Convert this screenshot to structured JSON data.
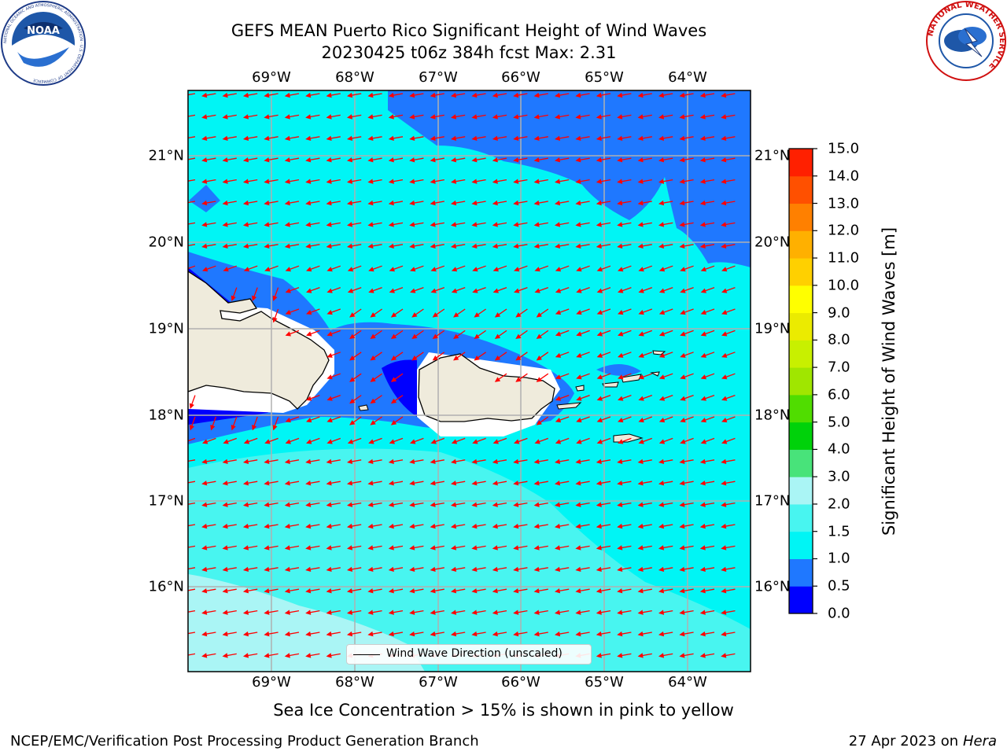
{
  "title_line1": "GEFS MEAN Puerto Rico Significant Height of Wind Waves",
  "title_line2": "20230425 t06z 384h fcst   Max: 2.31",
  "lon_ticks": [
    "69°W",
    "68°W",
    "67°W",
    "66°W",
    "65°W",
    "64°W"
  ],
  "lat_ticks": [
    "21°N",
    "20°N",
    "19°N",
    "18°N",
    "17°N",
    "16°N"
  ],
  "colorbar": {
    "label": "Significant Height of Wind Waves [m]",
    "ticks": [
      "0.0",
      "0.5",
      "1.0",
      "1.5",
      "2.0",
      "3.0",
      "4.0",
      "5.0",
      "6.0",
      "7.0",
      "8.0",
      "9.0",
      "10.0",
      "11.0",
      "12.0",
      "13.0",
      "14.0",
      "15.0"
    ],
    "colors": [
      "#0000ff",
      "#1f78ff",
      "#00f5f5",
      "#48f5f0",
      "#aaf5f5",
      "#48e37a",
      "#00d20a",
      "#50dd00",
      "#a0e600",
      "#c8f000",
      "#ebeb00",
      "#ffff00",
      "#ffd000",
      "#ffb000",
      "#ff8000",
      "#ff5000",
      "#ff2000"
    ]
  },
  "legend_label": "Wind Wave Direction (unscaled)",
  "note": "Sea Ice Concentration > 15% is shown in pink to yellow",
  "footer_left": "NCEP/EMC/Verification Post Processing Product Generation Branch",
  "footer_right_date": "27 Apr 2023 on",
  "footer_right_host": "Hera",
  "logo_left_text": "NOAA",
  "logo_left_ring": "NATIONAL OCEANIC AND ATMOSPHERIC ADMINISTRATION · U.S. DEPARTMENT OF COMMERCE",
  "logo_right_ring": "NATIONAL WEATHER SERVICE"
}
